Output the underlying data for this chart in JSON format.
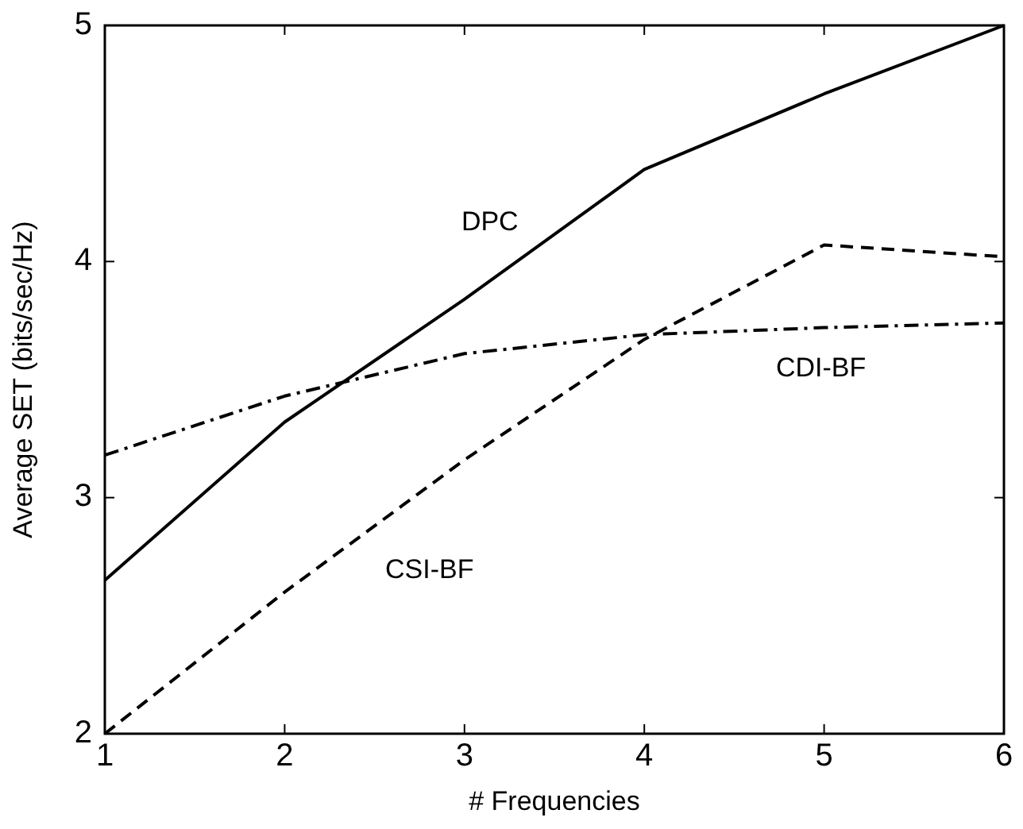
{
  "chart_data": {
    "type": "line",
    "xlabel": "# Frequencies",
    "ylabel": "Average SET (bits/sec/Hz)",
    "x": [
      1,
      2,
      3,
      4,
      5,
      6
    ],
    "series": [
      {
        "name": "DPC",
        "color": "#000000",
        "line_style": "solid",
        "values": [
          2.65,
          3.32,
          3.84,
          4.39,
          4.71,
          5.0
        ]
      },
      {
        "name": "CSI-BF",
        "color": "#000000",
        "line_style": "dashed",
        "values": [
          2.0,
          2.6,
          3.16,
          3.67,
          4.07,
          4.02
        ]
      },
      {
        "name": "CDI-BF",
        "color": "#000000",
        "line_style": "dashdot",
        "values": [
          3.18,
          3.43,
          3.61,
          3.69,
          3.72,
          3.74
        ]
      }
    ],
    "xlim": [
      1,
      6
    ],
    "xticks": [
      1,
      2,
      3,
      4,
      5,
      6
    ],
    "ylim": [
      2,
      5
    ],
    "yticks": [
      2,
      3,
      4,
      5
    ],
    "grid": false,
    "marker": "none"
  }
}
